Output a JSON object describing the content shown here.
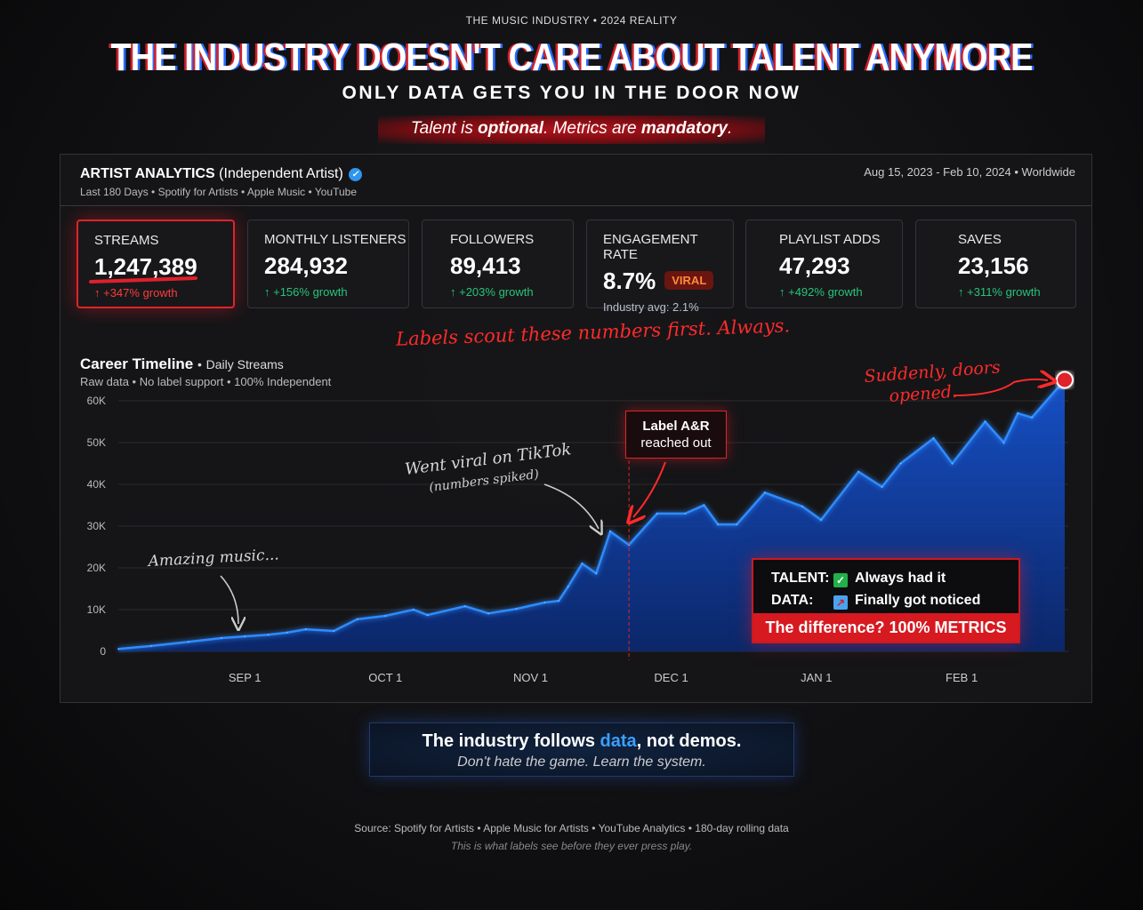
{
  "header": {
    "kicker": "THE MUSIC INDUSTRY • 2024 REALITY",
    "title": "THE INDUSTRY DOESN'T CARE ABOUT TALENT ANYMORE",
    "subtitle": "ONLY DATA GETS YOU IN THE DOOR NOW",
    "tagline_pre": "Talent is ",
    "tagline_b1": "optional",
    "tagline_mid": ". Metrics are ",
    "tagline_b2": "mandatory",
    "tagline_end": "."
  },
  "panel": {
    "title": "ARTIST ANALYTICS",
    "title_suffix": "(Independent Artist)",
    "verified_icon": "verified-check-icon",
    "subtitle": "Last 180 Days • Spotify for Artists • Apple Music • YouTube",
    "date_range": "Aug 15, 2023 - Feb 10, 2024 • Worldwide"
  },
  "metrics": [
    {
      "label": "STREAMS",
      "value": "1,247,389",
      "change": "↑ +347% growth",
      "highlight": true
    },
    {
      "label": "MONTHLY LISTENERS",
      "value": "284,932",
      "change": "↑ +156% growth"
    },
    {
      "label": "FOLLOWERS",
      "value": "89,413",
      "change": "↑ +203% growth"
    },
    {
      "label": "ENGAGEMENT RATE",
      "value": "8.7%",
      "badge": "VIRAL",
      "change": "Industry avg: 2.1%"
    },
    {
      "label": "PLAYLIST ADDS",
      "value": "47,293",
      "change": "↑ +492% growth"
    },
    {
      "label": "SAVES",
      "value": "23,156",
      "change": "↑ +311% growth"
    }
  ],
  "scout_note": "Labels scout these numbers first. Always.",
  "colors": {
    "accent_red": "#e0232a",
    "line_blue": "#2e8bff",
    "area_blue": "#0d3a9e",
    "growth_green": "#27c47a"
  },
  "legend_box": {
    "talent_key": "TALENT:",
    "talent_value": "Always had it",
    "talent_icon": "check-box-icon",
    "data_key": "DATA:",
    "data_value": "Finally got noticed",
    "data_icon": "chart-increasing-icon",
    "footer": "The difference? 100% METRICS"
  },
  "footer": {
    "main_pre": "The industry follows ",
    "main_hl": "data",
    "main_post": ", not demos.",
    "sub": "Don't hate the game. Learn the system.",
    "source": "Source: Spotify for Artists • Apple Music for Artists • YouTube Analytics • 180-day rolling data",
    "note": "This is what labels see before they ever press play."
  },
  "chart_data": {
    "type": "area",
    "title": "Career Timeline",
    "title_suffix": "Daily Streams",
    "subtitle": "Raw data • No label support • 100% Independent",
    "x_ticks": [
      {
        "date": "2023-09-01",
        "label": "SEP 1"
      },
      {
        "date": "2023-10-01",
        "label": "OCT 1"
      },
      {
        "date": "2023-11-01",
        "label": "NOV 1"
      },
      {
        "date": "2023-12-01",
        "label": "DEC 1"
      },
      {
        "date": "2024-01-01",
        "label": "JAN 1"
      },
      {
        "date": "2024-02-01",
        "label": "FEB 1"
      }
    ],
    "y_ticks": [
      {
        "value": 0,
        "label": "0"
      },
      {
        "value": 10000,
        "label": "10K"
      },
      {
        "value": 20000,
        "label": "20K"
      },
      {
        "value": 30000,
        "label": "30K"
      },
      {
        "value": 40000,
        "label": "40K"
      },
      {
        "value": 50000,
        "label": "50K"
      },
      {
        "value": 60000,
        "label": "60K"
      }
    ],
    "ylim": [
      0,
      60000
    ],
    "grid": true,
    "x": [
      "2023-08-05",
      "2023-08-12",
      "2023-08-20",
      "2023-08-27",
      "2023-09-01",
      "2023-09-06",
      "2023-09-10",
      "2023-09-14",
      "2023-09-20",
      "2023-09-25",
      "2023-10-01",
      "2023-10-07",
      "2023-10-10",
      "2023-10-18",
      "2023-10-23",
      "2023-10-29",
      "2023-11-04",
      "2023-11-07",
      "2023-11-09",
      "2023-11-12",
      "2023-11-15",
      "2023-11-18",
      "2023-11-22",
      "2023-11-28",
      "2023-12-04",
      "2023-12-08",
      "2023-12-11",
      "2023-12-15",
      "2023-12-21",
      "2023-12-29",
      "2024-01-02",
      "2024-01-10",
      "2024-01-15",
      "2024-01-19",
      "2024-01-26",
      "2024-01-30",
      "2024-02-06",
      "2024-02-10",
      "2024-02-13",
      "2024-02-16",
      "2024-02-23"
    ],
    "values": [
      600,
      1300,
      2300,
      3200,
      3600,
      4000,
      4500,
      5300,
      4900,
      7700,
      8500,
      10000,
      8700,
      10800,
      9100,
      10200,
      11700,
      12100,
      15500,
      21000,
      18700,
      28700,
      25500,
      33000,
      33000,
      35000,
      30400,
      30400,
      38000,
      34700,
      31500,
      43000,
      39400,
      45000,
      51000,
      45000,
      55000,
      50000,
      57000,
      56000,
      65000
    ],
    "annotations": [
      {
        "date": "2023-09-01",
        "text": "Amazing music..."
      },
      {
        "date": "2023-11-18",
        "text": "Went viral on TikTok",
        "subtext": "(numbers spiked)"
      },
      {
        "date": "2023-11-22",
        "text": "Label A&R",
        "subtext": "reached out",
        "marker": "dashed-vertical-line"
      },
      {
        "date": "2024-02-23",
        "text": "Suddenly, doors",
        "subtext": "opened.",
        "marker": "red-circle"
      }
    ]
  }
}
